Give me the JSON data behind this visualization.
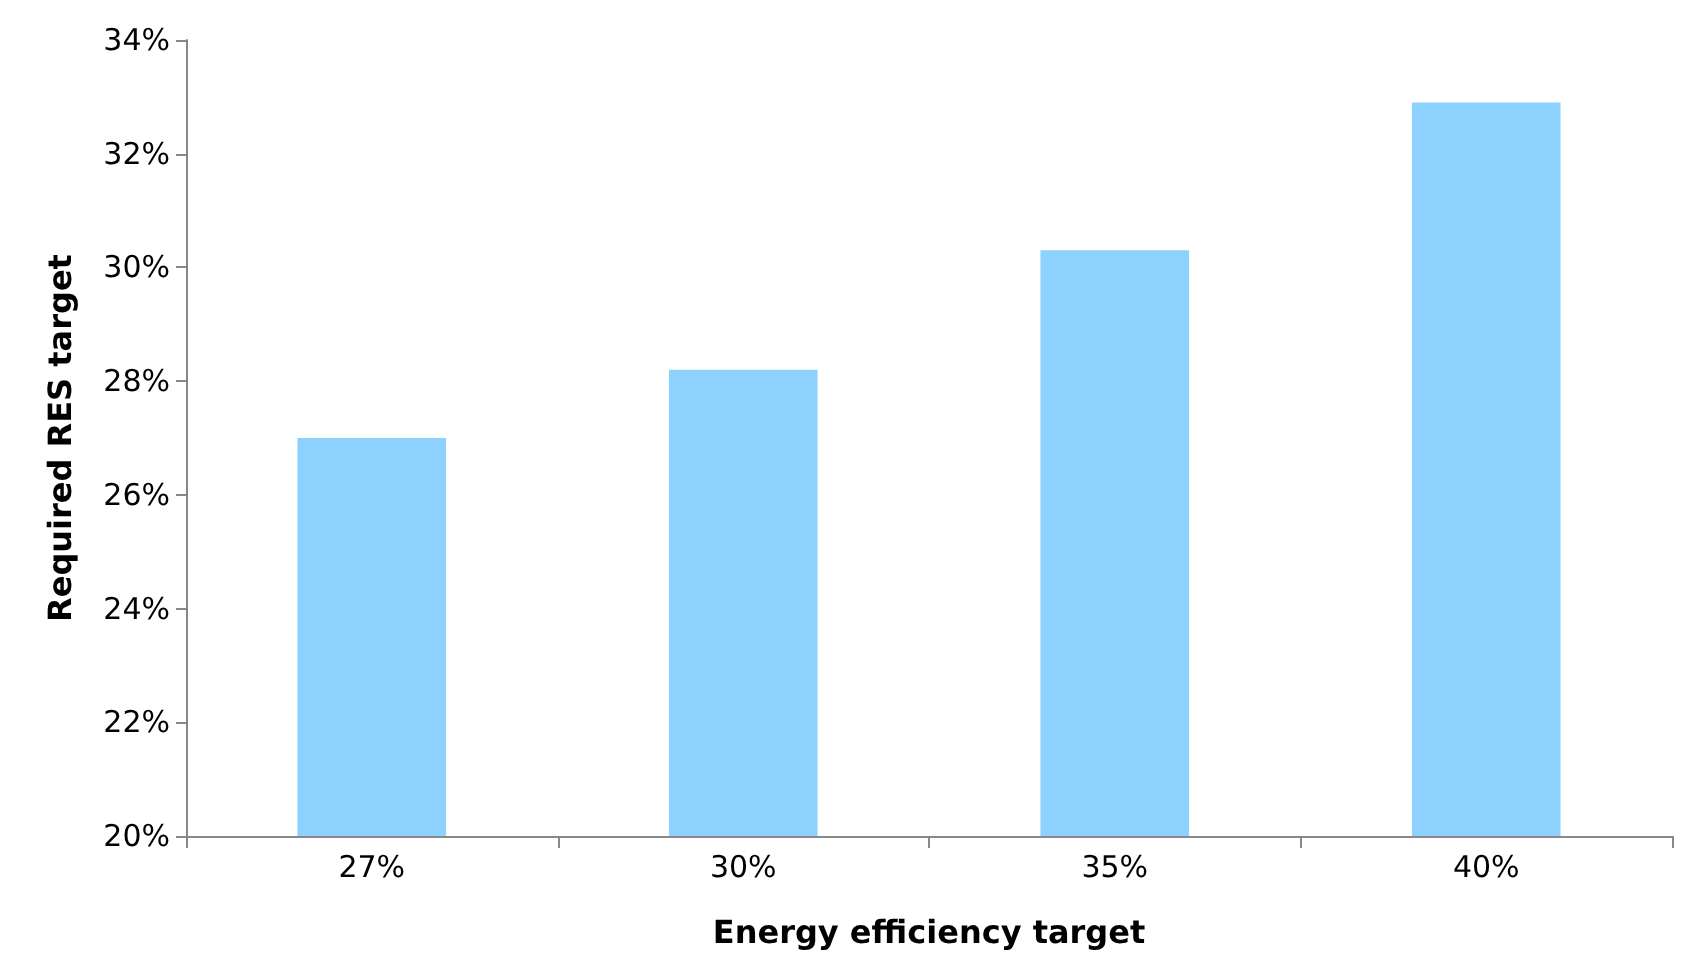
{
  "chart_data": {
    "type": "bar",
    "xlabel": "Energy efficiency target",
    "ylabel": "Required RES target",
    "categories": [
      "27%",
      "30%",
      "35%",
      "40%"
    ],
    "values": [
      27.0,
      28.2,
      30.3,
      32.9
    ],
    "color": "#8dd1ff",
    "ylim": [
      20,
      34
    ],
    "yticks": [
      {
        "value": 20,
        "label": "20%"
      },
      {
        "value": 22,
        "label": "22%"
      },
      {
        "value": 24,
        "label": "24%"
      },
      {
        "value": 26,
        "label": "26%"
      },
      {
        "value": 28,
        "label": "28%"
      },
      {
        "value": 30,
        "label": "30%"
      },
      {
        "value": 32,
        "label": "32%"
      },
      {
        "value": 34,
        "label": "34%"
      }
    ],
    "grid": false
  }
}
